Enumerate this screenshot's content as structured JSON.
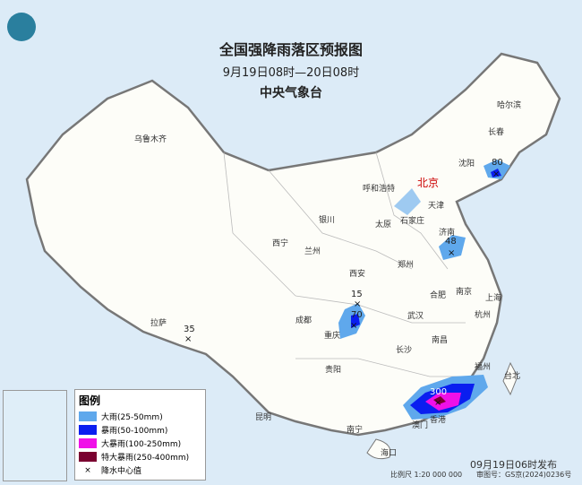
{
  "header": {
    "title": "全国强降雨落区预报图",
    "time_range": "9月19日08时—20日08时",
    "issuer": "中央气象台"
  },
  "cities": [
    {
      "name": "乌鲁木齐"
    },
    {
      "name": "哈尔滨"
    },
    {
      "name": "长春"
    },
    {
      "name": "沈阳"
    },
    {
      "name": "呼和浩特"
    },
    {
      "name": "北京",
      "capital": true
    },
    {
      "name": "天津"
    },
    {
      "name": "石家庄"
    },
    {
      "name": "太原"
    },
    {
      "name": "银川"
    },
    {
      "name": "西宁"
    },
    {
      "name": "兰州"
    },
    {
      "name": "济南"
    },
    {
      "name": "郑州"
    },
    {
      "name": "西安"
    },
    {
      "name": "合肥"
    },
    {
      "name": "南京"
    },
    {
      "name": "上海"
    },
    {
      "name": "成都"
    },
    {
      "name": "重庆"
    },
    {
      "name": "武汉"
    },
    {
      "name": "杭州"
    },
    {
      "name": "拉萨"
    },
    {
      "name": "长沙"
    },
    {
      "name": "南昌"
    },
    {
      "name": "福州"
    },
    {
      "name": "台北"
    },
    {
      "name": "贵阳"
    },
    {
      "name": "昆明"
    },
    {
      "name": "南宁"
    },
    {
      "name": "澳门"
    },
    {
      "name": "香港"
    },
    {
      "name": "海口"
    }
  ],
  "rain_centers": [
    "80",
    "48",
    "15",
    "70",
    "35",
    "300"
  ],
  "legend": {
    "title": "图例",
    "items": [
      {
        "label": "大雨(25-50mm)",
        "color": "#5fa8ec"
      },
      {
        "label": "暴雨(50-100mm)",
        "color": "#0a1ef0"
      },
      {
        "label": "大暴雨(100-250mm)",
        "color": "#f010e8"
      },
      {
        "label": "特大暴雨(250-400mm)",
        "color": "#7a0030"
      },
      {
        "label": "降水中心值",
        "symbol": "×"
      }
    ]
  },
  "footer": {
    "published": "09月19日06时发布",
    "scale": "比例尺 1:20 000 000",
    "map_no": "审图号：GS京(2024)0236号"
  }
}
